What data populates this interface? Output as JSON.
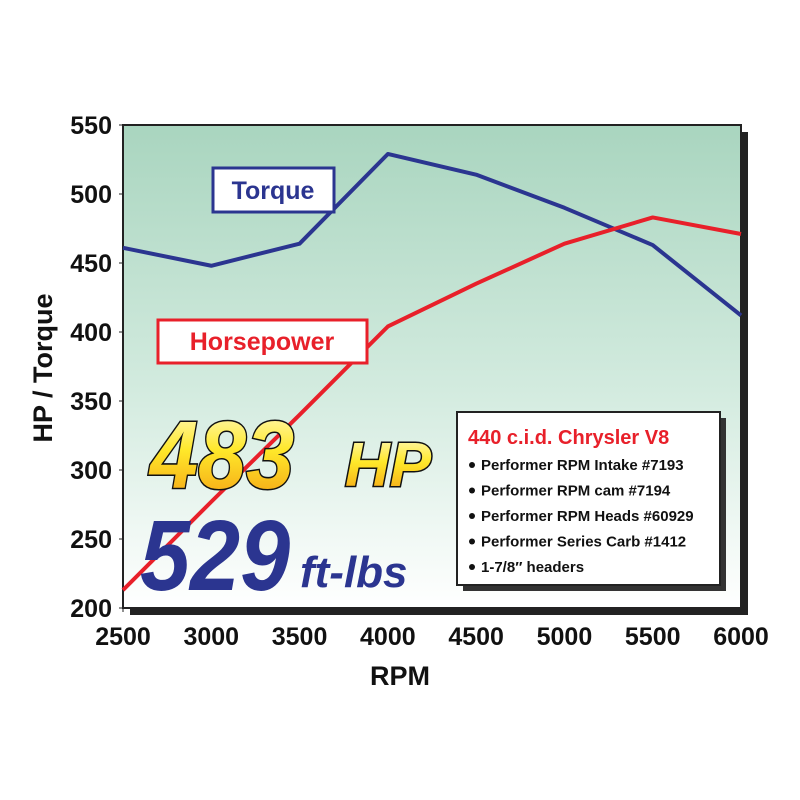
{
  "chart_data": {
    "type": "line",
    "x_label": "RPM",
    "y_label": "HP / Torque",
    "x": [
      2500,
      3000,
      3500,
      4000,
      4500,
      5000,
      5500,
      6000
    ],
    "series": [
      {
        "name": "Torque",
        "color": "#2b3590",
        "values": [
          461,
          448,
          464,
          529,
          514,
          490,
          463,
          412
        ]
      },
      {
        "name": "Horsepower",
        "color": "#e8202a",
        "values": [
          213,
          277,
          340,
          404,
          435,
          464,
          483,
          471
        ]
      }
    ],
    "xlim": [
      2500,
      6000
    ],
    "xticks": [
      2500,
      3000,
      3500,
      4000,
      4500,
      5000,
      5500,
      6000
    ],
    "ylim": [
      200,
      550
    ],
    "yticks": [
      200,
      250,
      300,
      350,
      400,
      450,
      500,
      550
    ],
    "grid": false,
    "annotations": {
      "peak_hp": "483",
      "hp_unit": "HP",
      "peak_torque": "529",
      "torque_unit": "ft-lbs"
    },
    "spec_box": {
      "title": "440 c.i.d. Chrysler V8",
      "items": [
        "Performer RPM Intake #7193",
        "Performer RPM cam #7194",
        "Performer RPM Heads #60929",
        "Performer Series Carb #1412",
        "1-7/8″ headers"
      ]
    }
  }
}
